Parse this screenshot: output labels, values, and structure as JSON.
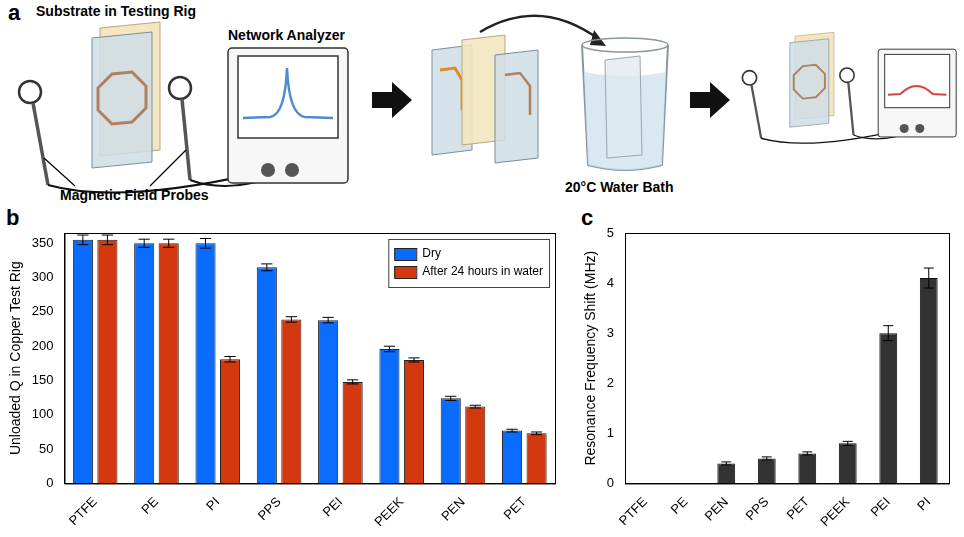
{
  "diagram": {
    "panel": "a",
    "labels": {
      "substrate": "Substrate in Testing Rig",
      "analyzer": "Network Analyzer",
      "probes": "Magnetic Field Probes",
      "bath": "20°C Water Bath"
    }
  },
  "chart_data": [
    {
      "panel": "b",
      "type": "bar",
      "y_label": "Unloaded Q in Copper Test Rig",
      "categories": [
        "PTFE",
        "PE",
        "PI",
        "PPS",
        "PEI",
        "PEEK",
        "PEN",
        "PET"
      ],
      "series": [
        {
          "name": "Dry",
          "color": "#0a6cff",
          "values": [
            355,
            350,
            350,
            315,
            238,
            196,
            124,
            77
          ],
          "errors": [
            7,
            6,
            7,
            5,
            4,
            4,
            3,
            2
          ]
        },
        {
          "name": "After 24 hours in water",
          "color": "#d3380f",
          "values": [
            355,
            350,
            181,
            239,
            148,
            180,
            112,
            73
          ],
          "errors": [
            7,
            6,
            4,
            4,
            3,
            3,
            2,
            2
          ]
        }
      ],
      "ylim": [
        0,
        365
      ],
      "yticks": [
        0,
        50,
        100,
        150,
        200,
        250,
        300,
        350
      ],
      "grid": false,
      "legend": "upper right"
    },
    {
      "panel": "c",
      "type": "bar",
      "y_label": "Resonance Frequency Shift (MHz)",
      "categories": [
        "PTFE",
        "PE",
        "PEN",
        "PPS",
        "PET",
        "PEEK",
        "PEI",
        "PI"
      ],
      "values": [
        0,
        0,
        0.4,
        0.5,
        0.6,
        0.8,
        3.0,
        4.1
      ],
      "errors": [
        0,
        0,
        0.03,
        0.03,
        0.03,
        0.04,
        0.15,
        0.2
      ],
      "color": "#333333",
      "ylim": [
        0,
        5
      ],
      "yticks": [
        0,
        1,
        2,
        3,
        4,
        5
      ],
      "grid": false
    }
  ]
}
